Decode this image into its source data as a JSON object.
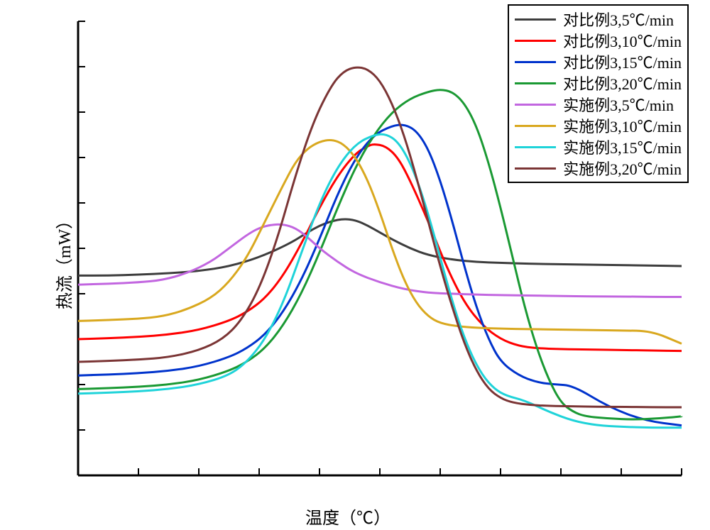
{
  "chart": {
    "type": "line",
    "background_color": "#ffffff",
    "axis_color": "#000000",
    "axis_width": 3,
    "line_width": 3,
    "xlabel": "温度（℃）",
    "ylabel": "热流（mW）",
    "label_fontsize": 24,
    "legend_fontsize": 22,
    "legend_border_color": "#000000",
    "legend_bg": "#ffffff",
    "xlim": [
      0,
      100
    ],
    "ylim": [
      0,
      100
    ],
    "series": [
      {
        "name": "对比例3,5℃/min",
        "color": "#3d3d3d",
        "points": [
          [
            0,
            44
          ],
          [
            5,
            44
          ],
          [
            10,
            44.2
          ],
          [
            15,
            44.5
          ],
          [
            20,
            45
          ],
          [
            25,
            46
          ],
          [
            30,
            48
          ],
          [
            35,
            51
          ],
          [
            38,
            53.5
          ],
          [
            40,
            55
          ],
          [
            42,
            56
          ],
          [
            44,
            56.5
          ],
          [
            46,
            56.2
          ],
          [
            48,
            55
          ],
          [
            50,
            53.5
          ],
          [
            52,
            52
          ],
          [
            55,
            50
          ],
          [
            58,
            48.5
          ],
          [
            62,
            47.5
          ],
          [
            66,
            47
          ],
          [
            70,
            46.8
          ],
          [
            75,
            46.6
          ],
          [
            80,
            46.5
          ],
          [
            85,
            46.4
          ],
          [
            90,
            46.3
          ],
          [
            95,
            46.2
          ],
          [
            100,
            46.1
          ]
        ]
      },
      {
        "name": "对比例3,10℃/min",
        "color": "#ff0000",
        "points": [
          [
            0,
            30
          ],
          [
            5,
            30.2
          ],
          [
            10,
            30.5
          ],
          [
            15,
            31
          ],
          [
            20,
            32
          ],
          [
            25,
            34
          ],
          [
            28,
            36
          ],
          [
            31,
            39
          ],
          [
            34,
            44
          ],
          [
            37,
            51
          ],
          [
            40,
            59
          ],
          [
            43,
            66
          ],
          [
            46,
            71
          ],
          [
            48,
            72.5
          ],
          [
            49,
            73
          ],
          [
            51,
            72.5
          ],
          [
            53,
            70
          ],
          [
            55,
            65
          ],
          [
            58,
            56
          ],
          [
            61,
            46
          ],
          [
            64,
            38
          ],
          [
            67,
            33
          ],
          [
            70,
            30
          ],
          [
            73,
            28.5
          ],
          [
            76,
            28
          ],
          [
            80,
            27.8
          ],
          [
            85,
            27.7
          ],
          [
            90,
            27.6
          ],
          [
            95,
            27.5
          ],
          [
            100,
            27.4
          ]
        ]
      },
      {
        "name": "对比例3,15℃/min",
        "color": "#0033cc",
        "points": [
          [
            0,
            22
          ],
          [
            5,
            22.2
          ],
          [
            10,
            22.5
          ],
          [
            15,
            23
          ],
          [
            20,
            24
          ],
          [
            25,
            26
          ],
          [
            28,
            28
          ],
          [
            31,
            31
          ],
          [
            34,
            36
          ],
          [
            37,
            43
          ],
          [
            40,
            52
          ],
          [
            43,
            62
          ],
          [
            46,
            70
          ],
          [
            49,
            75
          ],
          [
            52,
            77
          ],
          [
            54,
            77.3
          ],
          [
            56,
            76
          ],
          [
            58,
            72
          ],
          [
            60,
            65
          ],
          [
            62,
            56
          ],
          [
            64,
            46
          ],
          [
            66,
            37
          ],
          [
            68,
            30
          ],
          [
            70,
            25
          ],
          [
            73,
            22
          ],
          [
            76,
            20.5
          ],
          [
            79,
            20
          ],
          [
            82,
            19.8
          ],
          [
            88,
            15
          ],
          [
            94,
            12
          ],
          [
            100,
            11
          ]
        ]
      },
      {
        "name": "对比例3,20℃/min",
        "color": "#1a9933",
        "points": [
          [
            0,
            19
          ],
          [
            5,
            19.2
          ],
          [
            10,
            19.5
          ],
          [
            15,
            20
          ],
          [
            20,
            21
          ],
          [
            25,
            23
          ],
          [
            28,
            25
          ],
          [
            31,
            28
          ],
          [
            34,
            33
          ],
          [
            37,
            40
          ],
          [
            40,
            49
          ],
          [
            43,
            59
          ],
          [
            46,
            68
          ],
          [
            49,
            75
          ],
          [
            52,
            80
          ],
          [
            55,
            83
          ],
          [
            58,
            84.5
          ],
          [
            60,
            85
          ],
          [
            62,
            84.5
          ],
          [
            64,
            82
          ],
          [
            66,
            77
          ],
          [
            68,
            69
          ],
          [
            70,
            59
          ],
          [
            72,
            48
          ],
          [
            74,
            37
          ],
          [
            76,
            28
          ],
          [
            78,
            21
          ],
          [
            80,
            16
          ],
          [
            82,
            14
          ],
          [
            84,
            13
          ],
          [
            88,
            12.5
          ],
          [
            92,
            12.3
          ],
          [
            96,
            12.5
          ],
          [
            100,
            13
          ]
        ]
      },
      {
        "name": "实施例3,5℃/min",
        "color": "#c266e0",
        "points": [
          [
            0,
            42
          ],
          [
            5,
            42.2
          ],
          [
            10,
            42.5
          ],
          [
            14,
            43
          ],
          [
            18,
            44.5
          ],
          [
            22,
            47
          ],
          [
            25,
            50
          ],
          [
            28,
            53
          ],
          [
            30,
            54.5
          ],
          [
            32,
            55.2
          ],
          [
            34,
            55.3
          ],
          [
            36,
            54.5
          ],
          [
            38,
            52.5
          ],
          [
            40,
            50
          ],
          [
            43,
            47
          ],
          [
            46,
            44.5
          ],
          [
            50,
            42.5
          ],
          [
            54,
            41
          ],
          [
            58,
            40.2
          ],
          [
            62,
            40
          ],
          [
            66,
            39.8
          ],
          [
            70,
            39.7
          ],
          [
            75,
            39.6
          ],
          [
            80,
            39.5
          ],
          [
            85,
            39.4
          ],
          [
            90,
            39.4
          ],
          [
            95,
            39.3
          ],
          [
            100,
            39.3
          ]
        ]
      },
      {
        "name": "实施例3,10℃/min",
        "color": "#d9a81f",
        "points": [
          [
            0,
            34
          ],
          [
            5,
            34.2
          ],
          [
            10,
            34.5
          ],
          [
            14,
            35
          ],
          [
            18,
            36.5
          ],
          [
            22,
            39
          ],
          [
            25,
            42.5
          ],
          [
            28,
            48
          ],
          [
            31,
            56
          ],
          [
            34,
            64
          ],
          [
            36,
            69
          ],
          [
            38,
            72
          ],
          [
            40,
            73.5
          ],
          [
            42,
            74
          ],
          [
            44,
            73
          ],
          [
            46,
            70
          ],
          [
            48,
            65
          ],
          [
            50,
            58
          ],
          [
            52,
            50
          ],
          [
            54,
            43
          ],
          [
            56,
            38
          ],
          [
            58,
            35
          ],
          [
            60,
            33.5
          ],
          [
            63,
            32.8
          ],
          [
            66,
            32.5
          ],
          [
            70,
            32.3
          ],
          [
            75,
            32.2
          ],
          [
            80,
            32.1
          ],
          [
            85,
            32
          ],
          [
            90,
            31.9
          ],
          [
            95,
            31.8
          ],
          [
            100,
            29
          ]
        ]
      },
      {
        "name": "实施例3,15℃/min",
        "color": "#1fd3d9",
        "points": [
          [
            0,
            18
          ],
          [
            5,
            18.2
          ],
          [
            10,
            18.5
          ],
          [
            15,
            19
          ],
          [
            20,
            20
          ],
          [
            25,
            22
          ],
          [
            28,
            25
          ],
          [
            31,
            30
          ],
          [
            34,
            38
          ],
          [
            37,
            49
          ],
          [
            40,
            60
          ],
          [
            43,
            68
          ],
          [
            46,
            73
          ],
          [
            49,
            75
          ],
          [
            51,
            75.2
          ],
          [
            53,
            73.5
          ],
          [
            55,
            69
          ],
          [
            57,
            62
          ],
          [
            59,
            53
          ],
          [
            61,
            43
          ],
          [
            63,
            34
          ],
          [
            65,
            27
          ],
          [
            67,
            22
          ],
          [
            69,
            19
          ],
          [
            71,
            17.5
          ],
          [
            74,
            16.5
          ],
          [
            78,
            14
          ],
          [
            82,
            12
          ],
          [
            86,
            11
          ],
          [
            90,
            10.7
          ],
          [
            95,
            10.5
          ],
          [
            100,
            10.5
          ]
        ]
      },
      {
        "name": "实施例3,20℃/min",
        "color": "#7b3535",
        "points": [
          [
            0,
            25
          ],
          [
            5,
            25.2
          ],
          [
            10,
            25.5
          ],
          [
            15,
            26
          ],
          [
            20,
            27.5
          ],
          [
            24,
            30
          ],
          [
            27,
            34
          ],
          [
            30,
            41
          ],
          [
            33,
            52
          ],
          [
            36,
            66
          ],
          [
            39,
            78
          ],
          [
            42,
            86
          ],
          [
            44,
            89
          ],
          [
            46,
            90
          ],
          [
            48,
            89.5
          ],
          [
            50,
            87
          ],
          [
            52,
            82
          ],
          [
            54,
            75
          ],
          [
            56,
            66
          ],
          [
            58,
            56
          ],
          [
            60,
            46
          ],
          [
            62,
            37
          ],
          [
            64,
            29
          ],
          [
            66,
            23
          ],
          [
            68,
            19
          ],
          [
            70,
            17
          ],
          [
            72,
            16
          ],
          [
            75,
            15.5
          ],
          [
            78,
            15.3
          ],
          [
            82,
            15.2
          ],
          [
            86,
            15.1
          ],
          [
            90,
            15.1
          ],
          [
            95,
            15
          ],
          [
            100,
            15
          ]
        ]
      }
    ],
    "axis_tick_length": 10,
    "y_ticks": [
      10,
      20,
      30,
      40,
      50,
      60,
      70,
      80,
      90,
      100
    ],
    "x_ticks": [
      10,
      20,
      30,
      40,
      50,
      60,
      70,
      80,
      90,
      100
    ]
  }
}
